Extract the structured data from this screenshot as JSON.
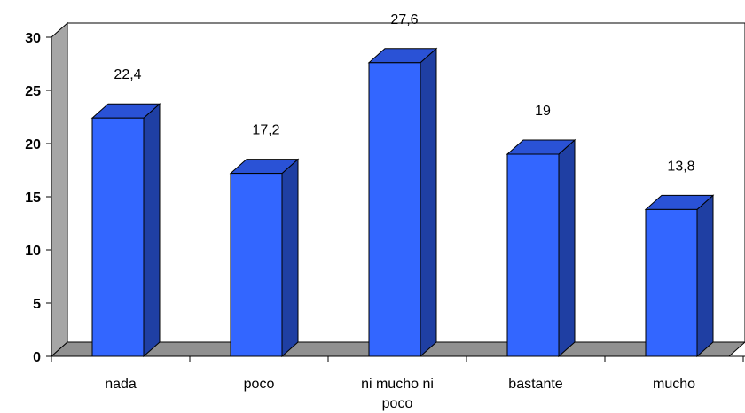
{
  "chart_data": {
    "type": "bar",
    "style": "3d-column",
    "categories": [
      "nada",
      "poco",
      "ni mucho ni poco",
      "bastante",
      "mucho"
    ],
    "category_label_lines": [
      [
        "nada"
      ],
      [
        "poco"
      ],
      [
        "ni mucho ni",
        "poco"
      ],
      [
        "bastante"
      ],
      [
        "mucho"
      ]
    ],
    "values": [
      22.4,
      17.2,
      27.6,
      19,
      13.8
    ],
    "data_labels": [
      "22,4",
      "17,2",
      "27,6",
      "19",
      "13,8"
    ],
    "title": "",
    "xlabel": "",
    "ylabel": "",
    "ylim": [
      0,
      30
    ],
    "yticks": [
      0,
      5,
      10,
      15,
      20,
      25,
      30
    ],
    "grid": false,
    "legend": "none",
    "colors": {
      "bar_front": "#3366ff",
      "bar_side": "#1f3fa3",
      "bar_top": "#2a52d6",
      "bar_outline": "#000000",
      "wall": "#a6a6a6",
      "floor": "#909090"
    }
  }
}
